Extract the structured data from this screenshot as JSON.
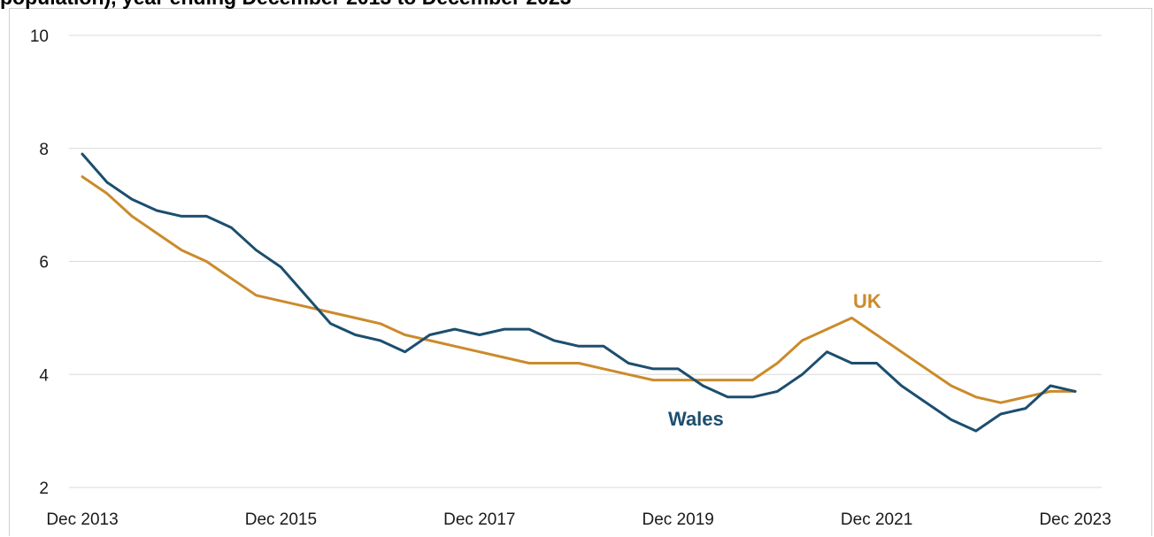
{
  "title": "population), year ending December 2013 to December 2023",
  "chart_data": {
    "type": "line",
    "ylim": [
      2,
      10
    ],
    "y_ticks": [
      "2",
      "4",
      "6",
      "8",
      "10"
    ],
    "x_tick_labels": [
      "Dec 2013",
      "Dec 2015",
      "Dec 2017",
      "Dec 2019",
      "Dec 2021",
      "Dec 2023"
    ],
    "x_note": "quarterly points, Dec 2013 to Dec 2023",
    "grid": true,
    "series": [
      {
        "name": "Wales",
        "color": "#1c4e6f",
        "values": [
          7.9,
          7.4,
          7.1,
          6.9,
          6.8,
          6.8,
          6.6,
          6.2,
          5.9,
          5.4,
          4.9,
          4.7,
          4.6,
          4.4,
          4.7,
          4.8,
          4.7,
          4.8,
          4.8,
          4.6,
          4.5,
          4.5,
          4.2,
          4.1,
          4.1,
          3.8,
          3.6,
          3.6,
          3.7,
          4.0,
          4.4,
          4.2,
          4.2,
          3.8,
          3.5,
          3.2,
          3.0,
          3.3,
          3.4,
          3.8,
          3.7
        ]
      },
      {
        "name": "UK",
        "color": "#cb8b2b",
        "values": [
          7.5,
          7.2,
          6.8,
          6.5,
          6.2,
          6.0,
          5.7,
          5.4,
          5.3,
          5.2,
          5.1,
          5.0,
          4.9,
          4.7,
          4.6,
          4.5,
          4.4,
          4.3,
          4.2,
          4.2,
          4.2,
          4.1,
          4.0,
          3.9,
          3.9,
          3.9,
          3.9,
          3.9,
          4.2,
          4.6,
          4.8,
          5.0,
          4.7,
          4.4,
          4.1,
          3.8,
          3.6,
          3.5,
          3.6,
          3.7,
          3.7
        ]
      }
    ]
  }
}
